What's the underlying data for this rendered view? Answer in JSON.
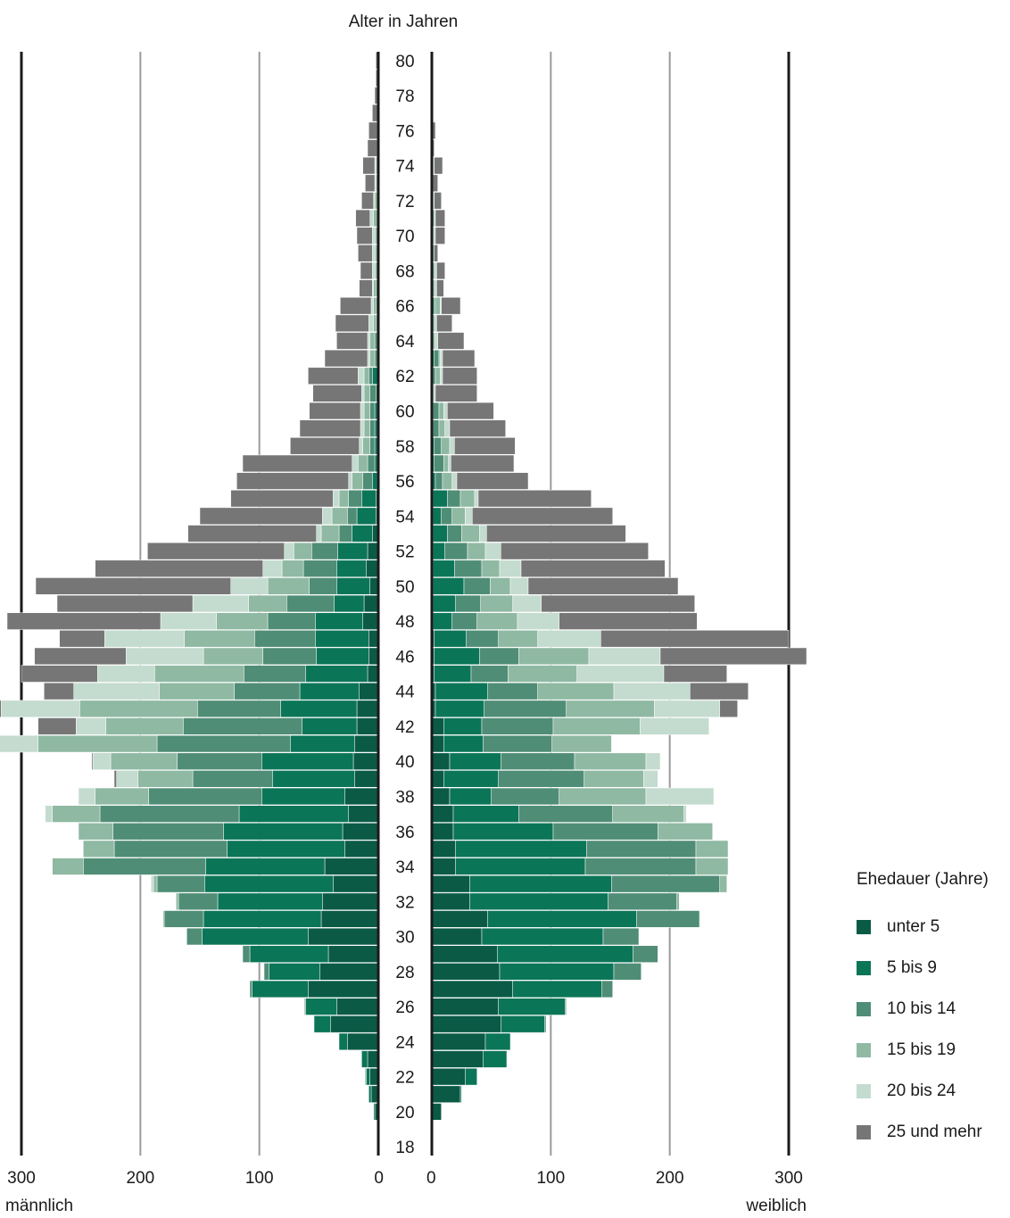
{
  "chart_data": {
    "type": "bar",
    "subtype": "population-pyramid",
    "title": "Alter in Jahren",
    "left_axis_label": "männlich",
    "right_axis_label": "weiblich",
    "x_ticks": [
      "0",
      "100",
      "200",
      "300"
    ],
    "xlim": [
      0,
      300
    ],
    "y_ticks": [
      "18",
      "20",
      "22",
      "24",
      "26",
      "28",
      "30",
      "32",
      "34",
      "36",
      "38",
      "40",
      "42",
      "44",
      "46",
      "48",
      "50",
      "52",
      "54",
      "56",
      "58",
      "60",
      "62",
      "64",
      "66",
      "68",
      "70",
      "72",
      "74",
      "76",
      "78",
      "80"
    ],
    "ylim": [
      18,
      80
    ],
    "ages": [
      80,
      79,
      78,
      77,
      76,
      75,
      74,
      73,
      72,
      71,
      70,
      69,
      68,
      67,
      66,
      65,
      64,
      63,
      62,
      61,
      60,
      59,
      58,
      57,
      56,
      55,
      54,
      53,
      52,
      51,
      50,
      49,
      48,
      47,
      46,
      45,
      44,
      43,
      42,
      41,
      40,
      39,
      38,
      37,
      36,
      35,
      34,
      33,
      32,
      31,
      30,
      29,
      28,
      27,
      26,
      25,
      24,
      23,
      22,
      21,
      20,
      19,
      18
    ],
    "legend_title": "Ehedauer (Jahre)",
    "series": [
      {
        "name": "unter 5",
        "color": "#0a5a46"
      },
      {
        "name": "5 bis 9",
        "color": "#0b7557"
      },
      {
        "name": "10 bis 14",
        "color": "#4f8d76"
      },
      {
        "name": "15 bis 19",
        "color": "#8fb9a2"
      },
      {
        "name": "20 bis 24",
        "color": "#c4dbcf"
      },
      {
        "name": "25 und mehr",
        "color": "#767677"
      }
    ],
    "male": [
      [
        0,
        0,
        0,
        0,
        0,
        2
      ],
      [
        0,
        0,
        0,
        0,
        0,
        2
      ],
      [
        0,
        0,
        0,
        0,
        0,
        3
      ],
      [
        0,
        0,
        0,
        0,
        0,
        5
      ],
      [
        0,
        0,
        0,
        1,
        0,
        7
      ],
      [
        0,
        0,
        0,
        1,
        0,
        8
      ],
      [
        0,
        0,
        1,
        1,
        1,
        10
      ],
      [
        0,
        0,
        1,
        1,
        1,
        8
      ],
      [
        0,
        0,
        1,
        2,
        1,
        10
      ],
      [
        0,
        0,
        1,
        3,
        3,
        12
      ],
      [
        0,
        1,
        1,
        1,
        2,
        13
      ],
      [
        0,
        1,
        1,
        1,
        2,
        12
      ],
      [
        0,
        1,
        1,
        1,
        2,
        10
      ],
      [
        0,
        1,
        1,
        2,
        1,
        11
      ],
      [
        0,
        1,
        1,
        2,
        2,
        26
      ],
      [
        0,
        1,
        1,
        2,
        4,
        28
      ],
      [
        0,
        1,
        2,
        4,
        2,
        26
      ],
      [
        0,
        1,
        2,
        4,
        2,
        36
      ],
      [
        0,
        5,
        3,
        4,
        5,
        42
      ],
      [
        0,
        2,
        5,
        5,
        2,
        41
      ],
      [
        1,
        2,
        4,
        5,
        3,
        43
      ],
      [
        1,
        2,
        4,
        5,
        3,
        51
      ],
      [
        1,
        2,
        4,
        6,
        3,
        58
      ],
      [
        1,
        2,
        6,
        8,
        5,
        92
      ],
      [
        1,
        4,
        8,
        9,
        3,
        94
      ],
      [
        2,
        12,
        11,
        8,
        5,
        86
      ],
      [
        2,
        16,
        8,
        13,
        8,
        103
      ],
      [
        5,
        17,
        11,
        15,
        4,
        108
      ],
      [
        9,
        25,
        22,
        15,
        8,
        115
      ],
      [
        10,
        25,
        28,
        18,
        16,
        141
      ],
      [
        7,
        28,
        23,
        35,
        31,
        164
      ],
      [
        12,
        25,
        40,
        32,
        47,
        114
      ],
      [
        13,
        40,
        40,
        43,
        47,
        129
      ],
      [
        8,
        45,
        51,
        59,
        67,
        38
      ],
      [
        8,
        44,
        45,
        50,
        65,
        77
      ],
      [
        9,
        52,
        52,
        75,
        48,
        64
      ],
      [
        16,
        50,
        55,
        63,
        72,
        25
      ],
      [
        18,
        64,
        70,
        99,
        66,
        29
      ],
      [
        18,
        46,
        100,
        65,
        25,
        32
      ],
      [
        20,
        54,
        112,
        100,
        55,
        2
      ],
      [
        21,
        77,
        71,
        56,
        15,
        1
      ],
      [
        20,
        69,
        67,
        46,
        18,
        2
      ],
      [
        28,
        70,
        95,
        45,
        14,
        0
      ],
      [
        25,
        92,
        117,
        40,
        6,
        0
      ],
      [
        30,
        100,
        93,
        29,
        0,
        0
      ],
      [
        28,
        99,
        95,
        26,
        0,
        0
      ],
      [
        45,
        100,
        103,
        26,
        0,
        0
      ],
      [
        38,
        108,
        40,
        3,
        2,
        0
      ],
      [
        47,
        88,
        33,
        2,
        0,
        0
      ],
      [
        48,
        99,
        33,
        1,
        0,
        0
      ],
      [
        59,
        89,
        13,
        0,
        0,
        0
      ],
      [
        42,
        66,
        6,
        0,
        0,
        0
      ],
      [
        49,
        43,
        4,
        0,
        0,
        0
      ],
      [
        59,
        47,
        2,
        0,
        0,
        0
      ],
      [
        35,
        26,
        1,
        0,
        0,
        0
      ],
      [
        40,
        14,
        0,
        0,
        0,
        0
      ],
      [
        26,
        7,
        0,
        0,
        0,
        0
      ],
      [
        9,
        5,
        0,
        0,
        0,
        0
      ],
      [
        7,
        3,
        1,
        0,
        0,
        0
      ],
      [
        6,
        2,
        0,
        0,
        0,
        0
      ],
      [
        3,
        1,
        0,
        0,
        0,
        0
      ],
      [
        0,
        0,
        0,
        0,
        0,
        0
      ],
      [
        0,
        0,
        0,
        0,
        0,
        0
      ]
    ],
    "female": [
      [
        0,
        0,
        0,
        0,
        0,
        0
      ],
      [
        0,
        0,
        0,
        0,
        0,
        1
      ],
      [
        0,
        0,
        0,
        0,
        0,
        1
      ],
      [
        0,
        0,
        0,
        0,
        0,
        1
      ],
      [
        0,
        0,
        0,
        0,
        0,
        3
      ],
      [
        0,
        0,
        0,
        0,
        0,
        2
      ],
      [
        0,
        1,
        0,
        0,
        1,
        7
      ],
      [
        0,
        0,
        1,
        0,
        0,
        4
      ],
      [
        0,
        0,
        1,
        0,
        1,
        6
      ],
      [
        0,
        1,
        1,
        0,
        1,
        8
      ],
      [
        0,
        0,
        1,
        0,
        2,
        8
      ],
      [
        0,
        1,
        1,
        0,
        0,
        3
      ],
      [
        0,
        1,
        1,
        1,
        1,
        7
      ],
      [
        0,
        1,
        1,
        1,
        1,
        6
      ],
      [
        0,
        2,
        1,
        4,
        1,
        16
      ],
      [
        0,
        1,
        1,
        1,
        1,
        13
      ],
      [
        0,
        1,
        1,
        1,
        2,
        22
      ],
      [
        0,
        2,
        4,
        1,
        2,
        27
      ],
      [
        0,
        1,
        2,
        4,
        2,
        29
      ],
      [
        0,
        0,
        0,
        1,
        2,
        35
      ],
      [
        0,
        1,
        5,
        4,
        3,
        39
      ],
      [
        0,
        1,
        5,
        5,
        4,
        47
      ],
      [
        0,
        2,
        6,
        7,
        4,
        51
      ],
      [
        0,
        2,
        8,
        4,
        2,
        53
      ],
      [
        0,
        3,
        6,
        8,
        4,
        60
      ],
      [
        1,
        12,
        11,
        12,
        3,
        95
      ],
      [
        1,
        7,
        9,
        11,
        6,
        118
      ],
      [
        1,
        12,
        12,
        15,
        6,
        117
      ],
      [
        1,
        10,
        19,
        15,
        13,
        124
      ],
      [
        1,
        18,
        23,
        15,
        18,
        121
      ],
      [
        1,
        26,
        22,
        17,
        15,
        126
      ],
      [
        1,
        19,
        21,
        27,
        24,
        129
      ],
      [
        1,
        16,
        21,
        34,
        35,
        116
      ],
      [
        2,
        27,
        27,
        33,
        53,
        158
      ],
      [
        2,
        38,
        33,
        59,
        60,
        123
      ],
      [
        2,
        31,
        31,
        58,
        73,
        53
      ],
      [
        3,
        44,
        42,
        64,
        64,
        49
      ],
      [
        3,
        41,
        69,
        74,
        55,
        15
      ],
      [
        10,
        32,
        60,
        73,
        58,
        0
      ],
      [
        10,
        33,
        58,
        50,
        0,
        0
      ],
      [
        15,
        43,
        62,
        60,
        12,
        0
      ],
      [
        10,
        46,
        72,
        50,
        12,
        0
      ],
      [
        15,
        35,
        57,
        73,
        57,
        0
      ],
      [
        18,
        55,
        79,
        60,
        2,
        0
      ],
      [
        18,
        84,
        88,
        46,
        0,
        0
      ],
      [
        20,
        110,
        92,
        27,
        0,
        0
      ],
      [
        20,
        109,
        93,
        27,
        0,
        0
      ],
      [
        32,
        119,
        91,
        6,
        0,
        0
      ],
      [
        32,
        116,
        58,
        2,
        0,
        0
      ],
      [
        47,
        125,
        53,
        0,
        0,
        0
      ],
      [
        42,
        102,
        30,
        0,
        0,
        0
      ],
      [
        55,
        114,
        21,
        0,
        0,
        0
      ],
      [
        57,
        96,
        23,
        0,
        0,
        0
      ],
      [
        68,
        75,
        9,
        0,
        0,
        0
      ],
      [
        56,
        56,
        1,
        0,
        0,
        0
      ],
      [
        58,
        37,
        1,
        0,
        0,
        0
      ],
      [
        45,
        21,
        0,
        0,
        0,
        0
      ],
      [
        43,
        20,
        0,
        0,
        0,
        0
      ],
      [
        28,
        10,
        0,
        0,
        0,
        0
      ],
      [
        24,
        1,
        0,
        0,
        0,
        0
      ],
      [
        8,
        0,
        0,
        0,
        0,
        0
      ],
      [
        1,
        0,
        0,
        0,
        0,
        0
      ],
      [
        0,
        0,
        0,
        0,
        0,
        0
      ]
    ]
  }
}
